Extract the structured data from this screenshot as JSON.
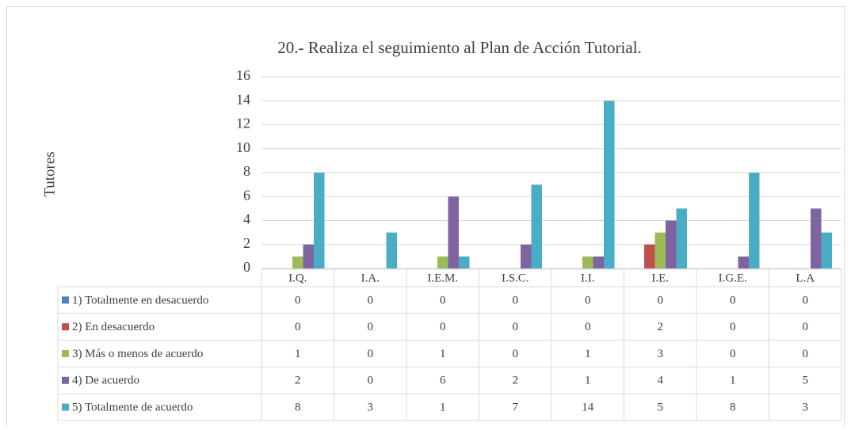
{
  "chart_data": {
    "type": "bar",
    "title": "20.- Realiza el seguimiento al Plan de Acción Tutorial.",
    "y_label": "Tutores",
    "categories": [
      "I.Q.",
      "I.A.",
      "I.E.M.",
      "I.S.C.",
      "I.I.",
      "I.E.",
      "I.G.E.",
      "L.A"
    ],
    "series": [
      {
        "name": "1) Totalmente en desacuerdo",
        "color": "#4f81bd",
        "values": [
          0,
          0,
          0,
          0,
          0,
          0,
          0,
          0
        ]
      },
      {
        "name": "2) En desacuerdo",
        "color": "#c0504d",
        "values": [
          0,
          0,
          0,
          0,
          0,
          2,
          0,
          0
        ]
      },
      {
        "name": "3) Más o menos de acuerdo",
        "color": "#9bbb59",
        "values": [
          1,
          0,
          1,
          0,
          1,
          3,
          0,
          0
        ]
      },
      {
        "name": "4) De acuerdo",
        "color": "#8064a2",
        "values": [
          2,
          0,
          6,
          2,
          1,
          4,
          1,
          5
        ]
      },
      {
        "name": "5) Totalmente de acuerdo",
        "color": "#4bacc6",
        "values": [
          8,
          3,
          1,
          7,
          14,
          5,
          8,
          3
        ]
      }
    ],
    "ylim": [
      0,
      16
    ],
    "yticks": [
      0,
      2,
      4,
      6,
      8,
      10,
      12,
      14,
      16
    ],
    "grid": true
  }
}
